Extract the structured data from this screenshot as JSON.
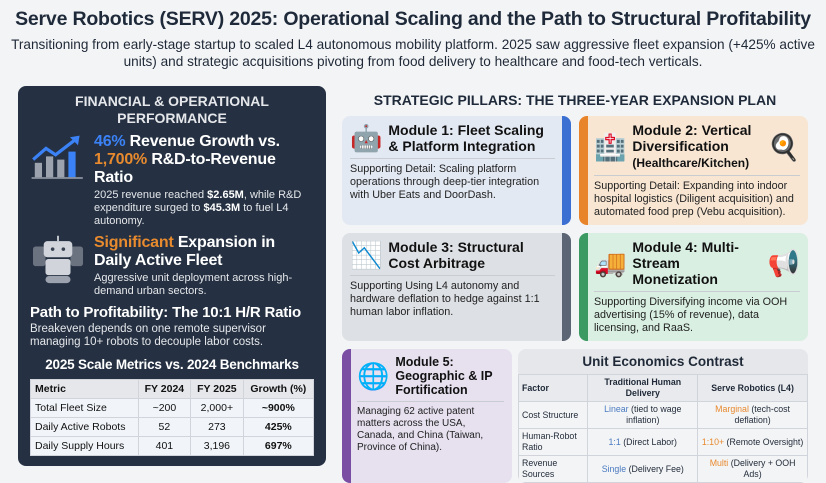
{
  "title": "Serve Robotics (SERV) 2025: Operational Scaling and the Path to Structural Profitability",
  "subtitle": "Transitioning from early-stage startup to scaled L4 autonomous mobility platform. 2025 saw aggressive fleet expansion (+425% active units) and strategic acquisitions pivoting from food delivery to healthcare and food-tech verticals.",
  "left": {
    "heading": "FINANCIAL & OPERATIONAL PERFORMANCE",
    "block1": {
      "pct1": "46%",
      "t1": " Revenue Growth vs.",
      "pct2": "1,700%",
      "t2": " R&D-to-Revenue Ratio",
      "d1": "2025 revenue reached ",
      "v1": "$2.65M",
      "d2": ", while R&D expenditure surged to ",
      "v2": "$45.3M",
      "d3": " to fuel L4 autonomy."
    },
    "block2": {
      "hl": "Significant",
      "t1": " Expansion in",
      "t2": "Daily Active Fleet",
      "desc": "Aggressive unit deployment across high-demand urban sectors."
    },
    "block3": {
      "title": "Path to Profitability: The 10:1 H/R Ratio",
      "desc": "Breakeven depends on one remote supervisor managing 10+ robots to decouple labor costs."
    },
    "table": {
      "title": "2025 Scale Metrics vs. 2024 Benchmarks",
      "headers": [
        "Metric",
        "FY 2024",
        "FY 2025",
        "Growth (%)"
      ],
      "rows": [
        [
          "Total Fleet Size",
          "~200",
          "2,000+",
          "~900%"
        ],
        [
          "Daily Active Robots",
          "52",
          "273",
          "425%"
        ],
        [
          "Daily Supply Hours",
          "401",
          "3,196",
          "697%"
        ]
      ]
    }
  },
  "pillars": {
    "heading": "STRATEGIC PILLARS: THE THREE-YEAR EXPANSION PLAN",
    "modules": [
      {
        "title": "Module 1: Fleet Scaling & Platform Integration",
        "detail": "Supporting Detail: Scaling platform operations through deep-tier integration with Uber Eats and DoorDash.",
        "color": "#3b6fd1"
      },
      {
        "title": "Module 2: Vertical Diversification",
        "subtitle": "(Healthcare/Kitchen)",
        "detail": "Supporting Detail: Expanding into indoor hospital logistics (Diligent acquisition) and automated food prep (Vebu acquisition).",
        "color": "#e8842a"
      },
      {
        "title": "Module 3: Structural Cost Arbitrage",
        "detail": "Supporting Using L4 autonomy and hardware deflation to hedge against 1:1 human labor inflation.",
        "color": "#5b6573"
      },
      {
        "title": "Module 4: Multi-Stream Monetization",
        "detail": "Supporting Diversifying income via OOH advertising (15% of revenue), data licensing, and RaaS.",
        "color": "#3a9a62"
      },
      {
        "title": "Module 5: Geographic & IP Fortification",
        "detail": "Managing 62 active patent matters across the USA, Canada, and China (Taiwan, Province of China).",
        "color": "#7a4fa3"
      }
    ]
  },
  "unit_economics": {
    "title": "Unit Economics Contrast",
    "headers": [
      "Factor",
      "Traditional Human Delivery",
      "Serve Robotics (L4)"
    ],
    "rows": [
      [
        "Cost Structure",
        "Linear",
        " (tied to wage inflation)",
        "Marginal",
        " (tech-cost deflation)"
      ],
      [
        "Human-Robot Ratio",
        "1:1",
        " (Direct Labor)",
        "1:10+",
        " (Remote Oversight)"
      ],
      [
        "Revenue Sources",
        "Single",
        " (Delivery Fee)",
        "Multi",
        " (Delivery + OOH Ads)"
      ]
    ]
  }
}
